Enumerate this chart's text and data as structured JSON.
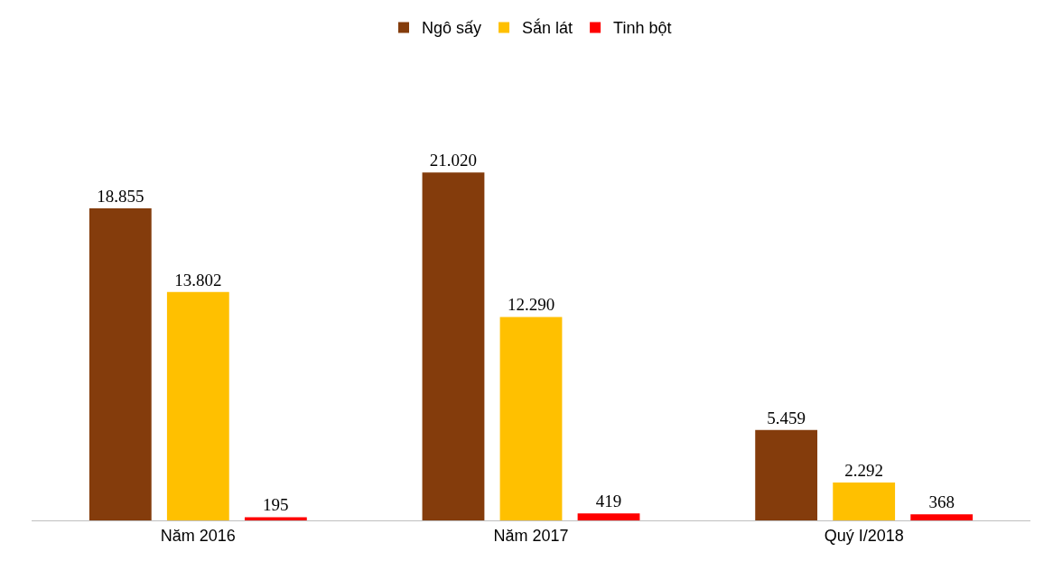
{
  "chart_data": {
    "type": "bar",
    "categories": [
      "Năm 2016",
      "Năm 2017",
      "Quý I/2018"
    ],
    "series": [
      {
        "name": "Ngô sấy",
        "color": "#843c0c",
        "values": [
          18855,
          21020,
          5459
        ],
        "value_labels": [
          "18.855",
          "21.020",
          "5.459"
        ]
      },
      {
        "name": "Sắn lát",
        "color": "#ffc000",
        "values": [
          13802,
          12290,
          2292
        ],
        "value_labels": [
          "13.802",
          "12.290",
          "2.292"
        ]
      },
      {
        "name": "Tinh bột",
        "color": "#ff0000",
        "values": [
          195,
          419,
          368
        ],
        "value_labels": [
          "195",
          "419",
          "368"
        ]
      }
    ],
    "legend": "top"
  }
}
